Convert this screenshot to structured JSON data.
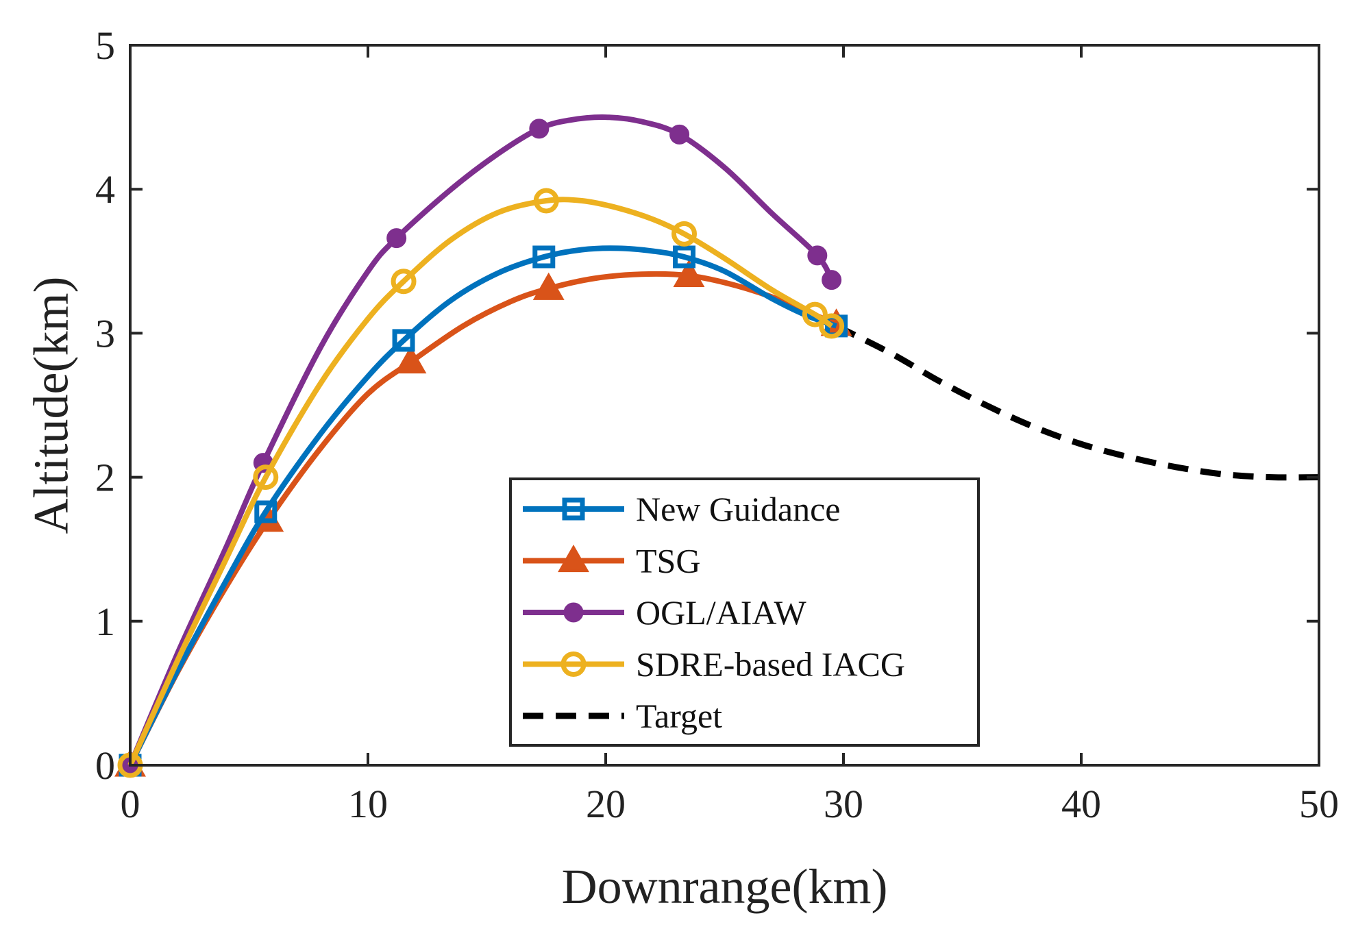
{
  "chart_data": {
    "type": "line",
    "title": "",
    "xlabel": "Downrange(km)",
    "ylabel": "Altitude(km)",
    "xlim": [
      0,
      50
    ],
    "ylim": [
      0,
      5
    ],
    "xticks": [
      "0",
      "10",
      "20",
      "30",
      "40",
      "50"
    ],
    "yticks": [
      "0",
      "1",
      "2",
      "3",
      "4",
      "5"
    ],
    "grid": false,
    "legend_position": "lower-center",
    "series": [
      {
        "name": "New Guidance",
        "color": "#0072BD",
        "marker": "square",
        "dash": "solid",
        "x": [
          0,
          2,
          4,
          5.7,
          8,
          10,
          11.5,
          13.5,
          15.5,
          17.4,
          19,
          20.5,
          22,
          23.3,
          25,
          27,
          28.5,
          29.7
        ],
        "y": [
          0,
          0.66,
          1.27,
          1.76,
          2.3,
          2.7,
          2.95,
          3.23,
          3.42,
          3.53,
          3.58,
          3.59,
          3.57,
          3.53,
          3.43,
          3.24,
          3.12,
          3.05
        ],
        "marker_x": [
          0,
          5.7,
          11.5,
          17.4,
          23.3,
          29.7
        ],
        "marker_y": [
          0,
          1.76,
          2.95,
          3.53,
          3.53,
          3.05
        ]
      },
      {
        "name": "TSG",
        "color": "#D95319",
        "marker": "triangle",
        "dash": "solid",
        "x": [
          0,
          2,
          4,
          5.8,
          8,
          10,
          11.8,
          14,
          16,
          17.6,
          19.5,
          21.5,
          23.5,
          25.5,
          27.5,
          29.7
        ],
        "y": [
          0,
          0.65,
          1.23,
          1.7,
          2.2,
          2.58,
          2.8,
          3.05,
          3.22,
          3.31,
          3.38,
          3.41,
          3.4,
          3.33,
          3.22,
          3.06
        ],
        "marker_x": [
          0,
          5.8,
          11.8,
          17.6,
          23.5,
          29.7
        ],
        "marker_y": [
          0,
          1.7,
          2.8,
          3.31,
          3.4,
          3.06
        ]
      },
      {
        "name": "OGL/AIAW",
        "color": "#7E2F8E",
        "marker": "dot",
        "dash": "solid",
        "x": [
          0,
          2,
          4,
          5.6,
          8,
          10,
          11.2,
          13.5,
          15.5,
          17.2,
          18.5,
          20,
          21.5,
          23.1,
          25,
          27,
          28.9,
          29.5
        ],
        "y": [
          0,
          0.78,
          1.5,
          2.1,
          2.9,
          3.43,
          3.66,
          4.0,
          4.25,
          4.42,
          4.48,
          4.5,
          4.47,
          4.38,
          4.15,
          3.83,
          3.54,
          3.37
        ],
        "marker_x": [
          0,
          5.6,
          11.2,
          17.2,
          23.1,
          28.9,
          29.5
        ],
        "marker_y": [
          0,
          2.1,
          3.66,
          4.42,
          4.38,
          3.54,
          3.37
        ]
      },
      {
        "name": "SDRE-based IACG",
        "color": "#EDB120",
        "marker": "circle",
        "dash": "solid",
        "x": [
          0,
          2,
          4,
          5.7,
          8,
          10,
          11.5,
          13.5,
          15.5,
          17.5,
          19,
          20.5,
          22,
          23.3,
          25,
          27,
          28.8,
          29.5
        ],
        "y": [
          0,
          0.73,
          1.42,
          2.0,
          2.65,
          3.1,
          3.36,
          3.65,
          3.84,
          3.92,
          3.92,
          3.87,
          3.79,
          3.69,
          3.52,
          3.3,
          3.13,
          3.05
        ],
        "marker_x": [
          0,
          5.7,
          11.5,
          17.5,
          23.3,
          28.8,
          29.5
        ],
        "marker_y": [
          0,
          2.0,
          3.36,
          3.92,
          3.69,
          3.13,
          3.05
        ]
      },
      {
        "name": "Target",
        "color": "#000000",
        "marker": "none",
        "dash": "dashed",
        "x": [
          29.7,
          32,
          34,
          36,
          38,
          40,
          42,
          44,
          46,
          48,
          50
        ],
        "y": [
          3.05,
          2.86,
          2.67,
          2.5,
          2.35,
          2.23,
          2.14,
          2.07,
          2.02,
          2.0,
          2.0
        ],
        "marker_x": [],
        "marker_y": []
      }
    ]
  }
}
